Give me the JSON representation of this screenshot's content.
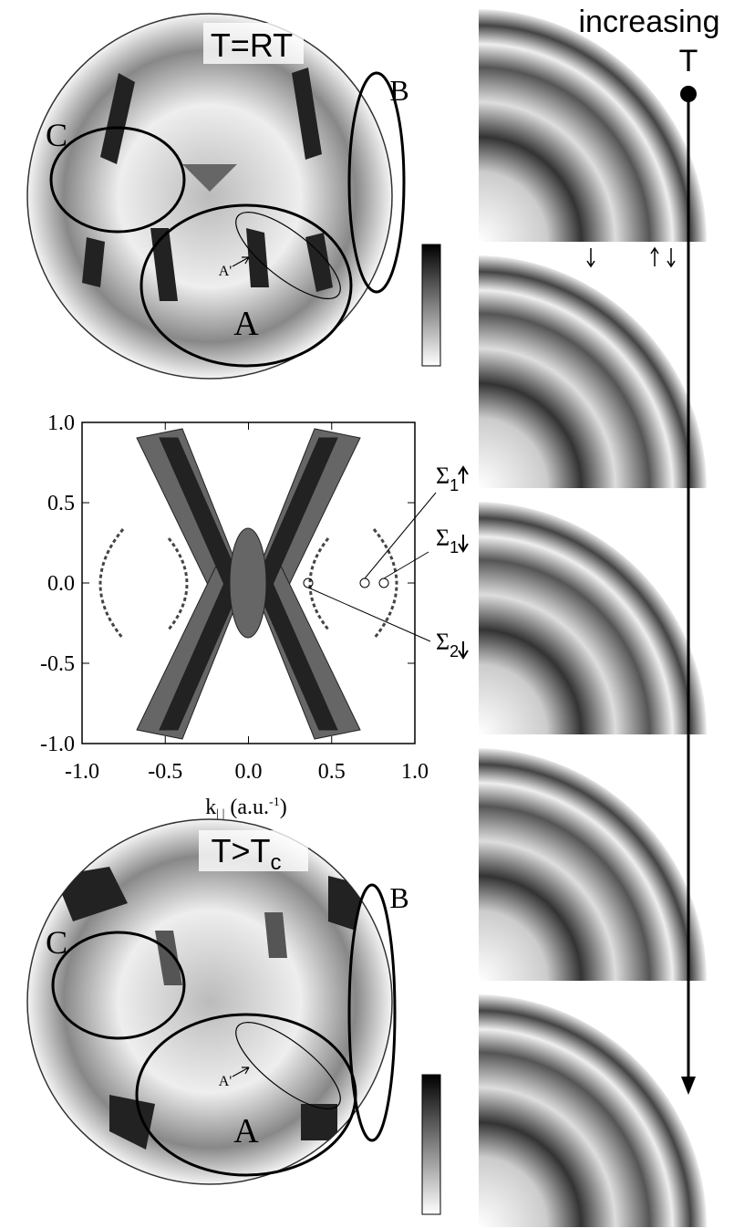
{
  "top_map": {
    "title": "T=RT",
    "region_a": "A",
    "region_b": "B",
    "region_c": "C",
    "subregion": "A'"
  },
  "fermi_plot": {
    "xticks": [
      {
        "value": -1,
        "label": "-1.0"
      },
      {
        "value": -0.5,
        "label": "-0.5"
      },
      {
        "value": 0,
        "label": "0.0"
      },
      {
        "value": 0.5,
        "label": "0.5"
      },
      {
        "value": 1,
        "label": "1.0"
      }
    ],
    "yticks": [
      {
        "value": -1,
        "label": "-1.0"
      },
      {
        "value": -0.5,
        "label": "-0.5"
      },
      {
        "value": 0,
        "label": "0.0"
      },
      {
        "value": 0.5,
        "label": "0.5"
      },
      {
        "value": 1,
        "label": "1.0"
      }
    ],
    "xlim": [
      -1,
      1
    ],
    "ylim": [
      -1,
      1
    ],
    "x_label": {
      "symbol": "k",
      "sub": "| |",
      "text": "(a.u.",
      "sup": "-1",
      "close": ")"
    },
    "annotations": [
      {
        "symbol": "Σ",
        "sub": "1"
      },
      {
        "symbol": "Σ",
        "sub": "1"
      },
      {
        "symbol": "Σ",
        "sub": "2"
      }
    ]
  },
  "bottom_map": {
    "title": "T>T",
    "title_sub": "c",
    "region_a": "A",
    "region_b": "B",
    "region_c": "C",
    "subregion": "A'"
  },
  "right_column": {
    "label_line1": "increasing",
    "label_line2": "T"
  }
}
